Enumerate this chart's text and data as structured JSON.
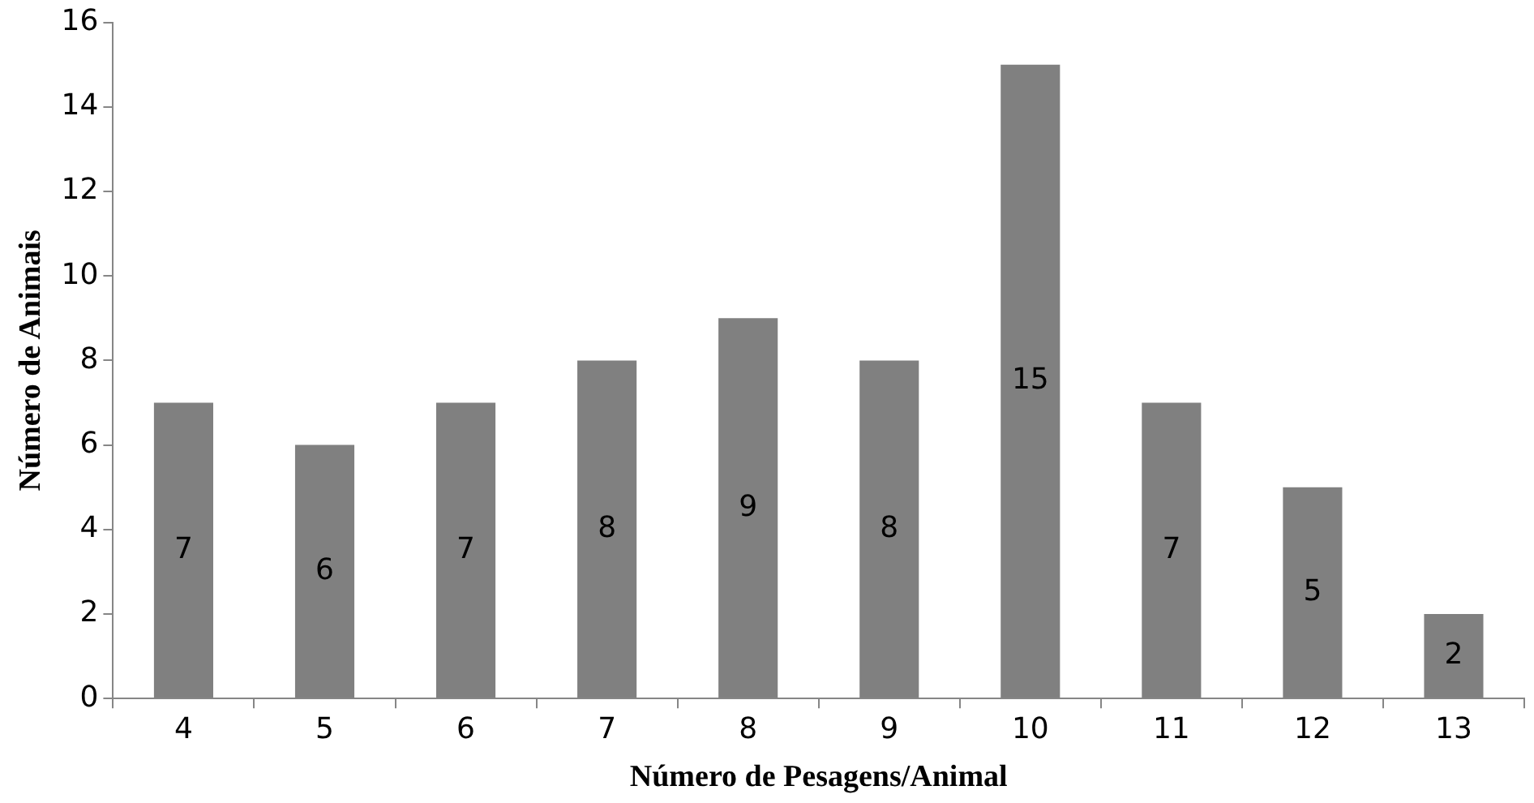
{
  "chart_data": {
    "type": "bar",
    "xlabel": "Número de Pesagens/Animal",
    "ylabel": "Número de Animais",
    "categories": [
      "4",
      "5",
      "6",
      "7",
      "8",
      "9",
      "10",
      "11",
      "12",
      "13"
    ],
    "values": [
      7,
      6,
      7,
      8,
      9,
      8,
      15,
      7,
      5,
      2
    ],
    "color": "#808080",
    "ylim": [
      0,
      16
    ],
    "yticks": [
      0,
      2,
      4,
      6,
      8,
      10,
      12,
      14,
      16
    ],
    "grid": false,
    "data_labels": true
  }
}
